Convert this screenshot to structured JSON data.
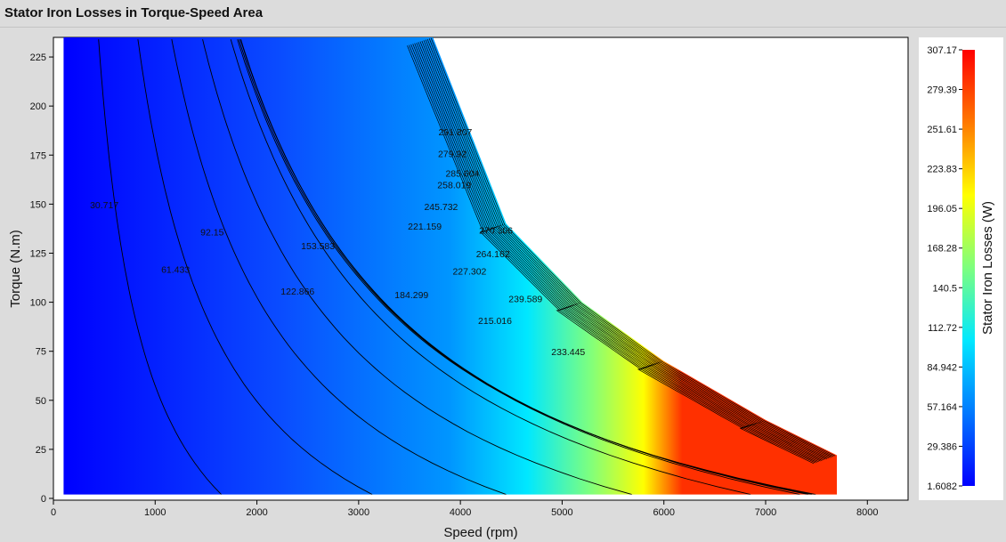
{
  "window": {
    "title": "Stator Iron Losses in Torque-Speed Area"
  },
  "chart_data": {
    "type": "heatmap",
    "subtype": "filled-contour",
    "title": "Stator Iron Losses in Torque-Speed Area",
    "xlabel": "Speed (rpm)",
    "ylabel": "Torque (N.m)",
    "colorbar_label": "Stator Iron Losses (W)",
    "xlim": [
      0,
      8400
    ],
    "ylim": [
      0,
      235
    ],
    "x_ticks": [
      0,
      1000,
      2000,
      3000,
      4000,
      5000,
      6000,
      7000,
      8000
    ],
    "y_ticks": [
      0,
      25,
      50,
      75,
      100,
      125,
      150,
      175,
      200,
      225
    ],
    "colorbar_ticks": [
      "307.17",
      "279.39",
      "251.61",
      "223.83",
      "196.05",
      "168.28",
      "140.5",
      "112.72",
      "84.942",
      "57.164",
      "29.386",
      "1.6082"
    ],
    "color_range": [
      1.6082,
      307.17
    ],
    "colormap": [
      "#0000ff",
      "#0078ff",
      "#00e8ff",
      "#7dff7f",
      "#ffff00",
      "#ff7800",
      "#ff0000"
    ],
    "grid": false,
    "speed_range": [
      100,
      7700
    ],
    "torque_range": [
      2,
      235
    ],
    "operating_envelope": {
      "speed": [
        3730,
        4450,
        5200,
        6000,
        7000,
        7700
      ],
      "torque": [
        235,
        140,
        100,
        70,
        40,
        22
      ]
    },
    "contour_labels": [
      {
        "text": "30.717",
        "x": 500,
        "y": 148
      },
      {
        "text": "61.433",
        "x": 1200,
        "y": 115
      },
      {
        "text": "92.15",
        "x": 1560,
        "y": 134
      },
      {
        "text": "122.866",
        "x": 2400,
        "y": 104
      },
      {
        "text": "153.583",
        "x": 2600,
        "y": 127
      },
      {
        "text": "184.299",
        "x": 3520,
        "y": 102
      },
      {
        "text": "215.016",
        "x": 4340,
        "y": 89
      },
      {
        "text": "221.159",
        "x": 3650,
        "y": 137
      },
      {
        "text": "227.302",
        "x": 4090,
        "y": 114
      },
      {
        "text": "233.445",
        "x": 5060,
        "y": 73
      },
      {
        "text": "239.589",
        "x": 4640,
        "y": 100
      },
      {
        "text": "245.732",
        "x": 3810,
        "y": 147
      },
      {
        "text": "258.019",
        "x": 3940,
        "y": 158
      },
      {
        "text": "264.162",
        "x": 4320,
        "y": 123
      },
      {
        "text": "270.306",
        "x": 4350,
        "y": 135
      },
      {
        "text": "279.92",
        "x": 3920,
        "y": 174
      },
      {
        "text": "285.604",
        "x": 4020,
        "y": 164
      },
      {
        "text": "291.807",
        "x": 3950,
        "y": 185
      }
    ]
  }
}
